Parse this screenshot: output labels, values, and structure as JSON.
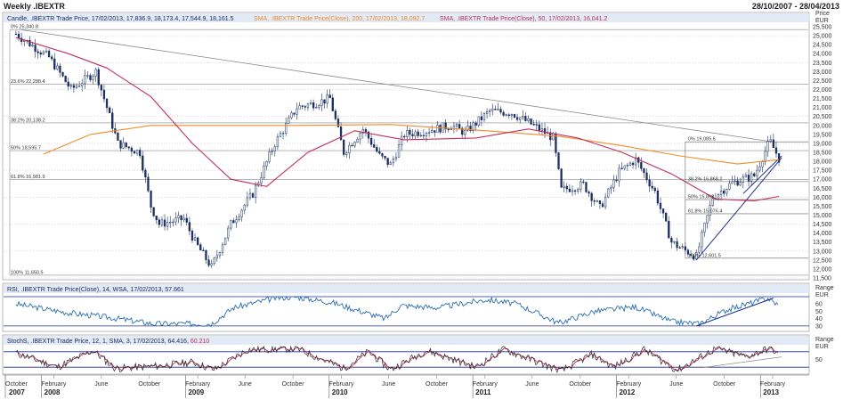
{
  "header": {
    "title": "Weekly .IBEXTR",
    "date_range": "28/10/2007 - 28/04/2013"
  },
  "legend": {
    "candle": "Candle, .IBEXTR Trade Price, 17/02/2013, 17,836.9, 18,173.4, 17,544.9, 18,161.5",
    "sma200": "SMA, .IBEXTR Trade Price(Close), 200, 17/02/2013, 18,092.7",
    "sma50": "SMA, .IBEXTR Trade Price(Close), 50, 17/02/2013, 16,041.2",
    "rsi": "RSI, .IBEXTR Trade Price(Close), 14, WSA, 17/02/2013, 57.661",
    "stoch_prefix": "StochS, .IBEXTR Trade Price, 12, 1, SMA, 3, 17/02/2013, 64.416,",
    "stoch_last": "60.210"
  },
  "colors": {
    "candle": "#1a2f63",
    "sma200": "#f28c28",
    "sma50": "#c0305a",
    "rsi": "#2a6fb0",
    "trend": "#1f2f8f",
    "band": "#1f2f8f",
    "grid": "#b8b8b8"
  },
  "axis_titles": {
    "price": "Price",
    "price_unit": "EUR",
    "range": "Range",
    "range_unit": "EUR"
  },
  "chart_data": {
    "type": "candlestick",
    "title": "Weekly .IBEXTR",
    "x_range": [
      "28/10/2007",
      "28/04/2013"
    ],
    "price_ylim": [
      11500,
      25500
    ],
    "price_ticks": [
      11500,
      12000,
      12500,
      13000,
      13500,
      14000,
      14500,
      15000,
      15500,
      16000,
      16500,
      17000,
      17500,
      18000,
      18500,
      19000,
      19500,
      20000,
      20500,
      21000,
      21500,
      22000,
      22500,
      23000,
      23500,
      24000,
      24500,
      25000,
      25500
    ],
    "price_tick_labels": [
      "11,500",
      "12,000",
      "12,500",
      "13,000",
      "13,500",
      "14,000",
      "14,500",
      "15,000",
      "15,500",
      "16,000",
      "16,500",
      "17,000",
      "17,500",
      "18,000",
      "18,500",
      "19,000",
      "19,500",
      "20,000",
      "20,500",
      "21,000",
      "21,500",
      "22,000",
      "22,500",
      "23,000",
      "23,500",
      "24,000",
      "24,500",
      "25,000",
      "25,500"
    ],
    "series": [
      {
        "name": "Candle",
        "points": [
          [
            "2007-10-28",
            25100
          ],
          [
            "2008-01-20",
            23800
          ],
          [
            "2008-03-16",
            22000
          ],
          [
            "2008-05-18",
            23000
          ],
          [
            "2008-06-15",
            21000
          ],
          [
            "2008-07-13",
            19000
          ],
          [
            "2008-09-07",
            18500
          ],
          [
            "2008-10-05",
            15500
          ],
          [
            "2008-10-26",
            14500
          ],
          [
            "2008-12-28",
            14800
          ],
          [
            "2009-01-25",
            13500
          ],
          [
            "2009-03-08",
            12100
          ],
          [
            "2009-04-26",
            14500
          ],
          [
            "2009-06-21",
            16200
          ],
          [
            "2009-08-16",
            19000
          ],
          [
            "2009-10-11",
            21000
          ],
          [
            "2009-12-06",
            21300
          ],
          [
            "2010-01-03",
            21500
          ],
          [
            "2010-02-07",
            18500
          ],
          [
            "2010-03-28",
            19800
          ],
          [
            "2010-05-09",
            18300
          ],
          [
            "2010-06-06",
            17800
          ],
          [
            "2010-07-11",
            19500
          ],
          [
            "2010-09-05",
            19700
          ],
          [
            "2010-11-07",
            20000
          ],
          [
            "2010-12-12",
            19600
          ],
          [
            "2011-02-13",
            20800
          ],
          [
            "2011-04-10",
            20700
          ],
          [
            "2011-06-12",
            19900
          ],
          [
            "2011-07-24",
            19300
          ],
          [
            "2011-08-14",
            16400
          ],
          [
            "2011-10-09",
            16700
          ],
          [
            "2011-11-20",
            15400
          ],
          [
            "2012-01-08",
            17400
          ],
          [
            "2012-02-19",
            18100
          ],
          [
            "2012-04-08",
            16300
          ],
          [
            "2012-05-20",
            13500
          ],
          [
            "2012-06-10",
            13200
          ],
          [
            "2012-07-22",
            12700
          ],
          [
            "2012-09-02",
            16000
          ],
          [
            "2012-10-21",
            16800
          ],
          [
            "2012-12-16",
            17200
          ],
          [
            "2013-01-20",
            18900
          ],
          [
            "2013-01-27",
            19050
          ],
          [
            "2013-02-17",
            18161.5
          ]
        ]
      },
      {
        "name": "SMA 200",
        "value_last": 18092.7
      },
      {
        "name": "SMA 50",
        "value_last": 16041.2
      }
    ],
    "fib_levels_left": [
      {
        "label": "0% 25,340.8",
        "value": 25340
      },
      {
        "label": "23.6% 22,288.4",
        "value": 22290
      },
      {
        "label": "38.2% 20,138.2",
        "value": 20140
      },
      {
        "label": "50% 18,595.7",
        "value": 18595
      },
      {
        "label": "61.8% 16,981.9",
        "value": 16982
      },
      {
        "label": "100% 11,650.5",
        "value": 11650
      }
    ],
    "fib_levels_right": [
      {
        "label": "0% 19,085.6",
        "value": 19085
      },
      {
        "label": "38.2% 16,868.2",
        "value": 16868
      },
      {
        "label": "50% 15,868",
        "value": 15868
      },
      {
        "label": "61.8% 15,076.4",
        "value": 15076
      },
      {
        "label": "100% 12,601.5",
        "value": 12601
      }
    ],
    "rsi": {
      "last": 57.661,
      "ticks": [
        30,
        40,
        50,
        60
      ],
      "band_levels": [
        30,
        70
      ],
      "points": [
        [
          "2007-10-28",
          60
        ],
        [
          "2008-03-09",
          48
        ],
        [
          "2008-06-15",
          42
        ],
        [
          "2008-10-12",
          33
        ],
        [
          "2009-03-08",
          33
        ],
        [
          "2009-05-03",
          55
        ],
        [
          "2009-08-16",
          68
        ],
        [
          "2009-10-04",
          70
        ],
        [
          "2010-01-10",
          62
        ],
        [
          "2010-05-23",
          40
        ],
        [
          "2010-07-04",
          58
        ],
        [
          "2010-10-03",
          55
        ],
        [
          "2011-02-06",
          66
        ],
        [
          "2011-04-24",
          60
        ],
        [
          "2011-08-07",
          34
        ],
        [
          "2011-11-06",
          50
        ],
        [
          "2012-02-19",
          56
        ],
        [
          "2012-05-20",
          36
        ],
        [
          "2012-07-29",
          33
        ],
        [
          "2012-10-07",
          52
        ],
        [
          "2013-01-20",
          68
        ],
        [
          "2013-02-17",
          57.661
        ]
      ]
    },
    "stochastic": {
      "last_k": 64.416,
      "last_d": 60.21,
      "band_levels": [
        20,
        80
      ],
      "ticks": [
        50
      ],
      "points_k": [
        [
          "2007-10-28",
          75
        ],
        [
          "2008-02-10",
          20
        ],
        [
          "2008-05-11",
          85
        ],
        [
          "2008-07-06",
          15
        ],
        [
          "2008-10-26",
          25
        ],
        [
          "2009-01-18",
          40
        ],
        [
          "2009-03-15",
          10
        ],
        [
          "2009-06-07",
          88
        ],
        [
          "2009-10-11",
          92
        ],
        [
          "2010-02-07",
          15
        ],
        [
          "2010-04-11",
          80
        ],
        [
          "2010-06-06",
          10
        ],
        [
          "2010-09-05",
          85
        ],
        [
          "2011-01-09",
          20
        ],
        [
          "2011-03-20",
          90
        ],
        [
          "2011-08-14",
          5
        ],
        [
          "2011-10-30",
          70
        ],
        [
          "2011-12-25",
          20
        ],
        [
          "2012-03-11",
          88
        ],
        [
          "2012-06-03",
          8
        ],
        [
          "2012-09-09",
          92
        ],
        [
          "2012-11-25",
          60
        ],
        [
          "2013-01-27",
          95
        ],
        [
          "2013-02-17",
          64.416
        ]
      ]
    },
    "x_month_labels": [
      {
        "date": "2007-10-01",
        "label": "October"
      },
      {
        "date": "2008-02-01",
        "label": "February"
      },
      {
        "date": "2008-06-01",
        "label": "June"
      },
      {
        "date": "2008-10-01",
        "label": "October"
      },
      {
        "date": "2009-02-01",
        "label": "February"
      },
      {
        "date": "2009-06-01",
        "label": "June"
      },
      {
        "date": "2009-10-01",
        "label": "October"
      },
      {
        "date": "2010-02-01",
        "label": "February"
      },
      {
        "date": "2010-06-01",
        "label": "June"
      },
      {
        "date": "2010-10-01",
        "label": "October"
      },
      {
        "date": "2011-02-01",
        "label": "February"
      },
      {
        "date": "2011-06-01",
        "label": "June"
      },
      {
        "date": "2011-10-01",
        "label": "October"
      },
      {
        "date": "2012-02-01",
        "label": "February"
      },
      {
        "date": "2012-06-01",
        "label": "June"
      },
      {
        "date": "2012-10-01",
        "label": "October"
      },
      {
        "date": "2013-02-01",
        "label": "February"
      }
    ],
    "x_year_labels": [
      {
        "date": "2007-10-01",
        "label": "2007"
      },
      {
        "date": "2008-01-01",
        "label": "2008"
      },
      {
        "date": "2009-01-01",
        "label": "2009"
      },
      {
        "date": "2010-01-01",
        "label": "2010"
      },
      {
        "date": "2011-01-01",
        "label": "2011"
      },
      {
        "date": "2012-01-01",
        "label": "2012"
      },
      {
        "date": "2013-01-01",
        "label": "2013"
      }
    ]
  }
}
